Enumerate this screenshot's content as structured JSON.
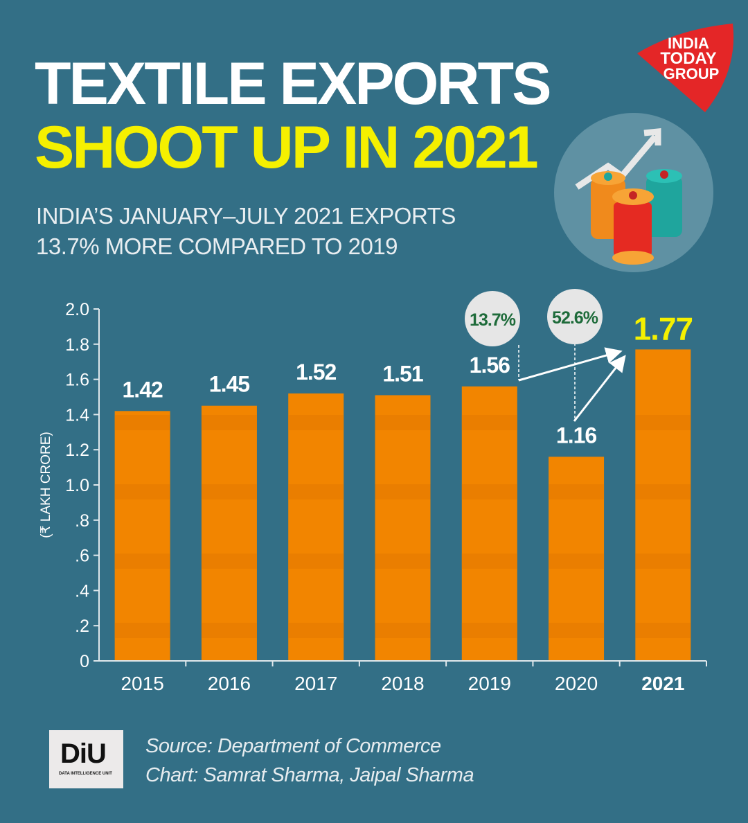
{
  "header": {
    "title_line1": "TEXTILE EXPORTS",
    "title_line2": "SHOOT UP IN 2021",
    "subtitle_line1": "INDIA’S JANUARY–JULY 2021 EXPORTS",
    "subtitle_line2": "13.7% MORE COMPARED TO 2019"
  },
  "brand": {
    "logo_text": "INDIA TODAY GROUP",
    "diu_text": "DiU",
    "diu_subtext": "DATA INTELLIGENCE UNIT"
  },
  "illustration": "thread-spools-rising-arrow-icon",
  "colors": {
    "background": "#336f86",
    "bar": "#f28500",
    "highlight": "#f5f000",
    "badge_text": "#1e6b3a"
  },
  "chart_data": {
    "type": "bar",
    "categories": [
      "2015",
      "2016",
      "2017",
      "2018",
      "2019",
      "2020",
      "2021"
    ],
    "values": [
      1.42,
      1.45,
      1.52,
      1.51,
      1.56,
      1.16,
      1.77
    ],
    "data_labels": [
      "1.42",
      "1.45",
      "1.52",
      "1.51",
      "1.56",
      "1.16",
      "1.77"
    ],
    "ylabel": "(₹ LAKH CRORE)",
    "xlabel": "",
    "ylim": [
      0,
      2.0
    ],
    "yticks": [
      "0",
      ".2",
      ".4",
      ".6",
      ".8",
      "1.0",
      "1.2",
      "1.4",
      "1.6",
      "1.8",
      "2.0"
    ],
    "grid": false,
    "highlight_category": "2021",
    "annotations": [
      {
        "text": "13.7%",
        "from": "2019",
        "to": "2021"
      },
      {
        "text": "52.6%",
        "from": "2020",
        "to": "2021"
      }
    ]
  },
  "footer": {
    "source": "Source: Department of Commerce",
    "credit": "Chart: Samrat Sharma, Jaipal Sharma"
  }
}
